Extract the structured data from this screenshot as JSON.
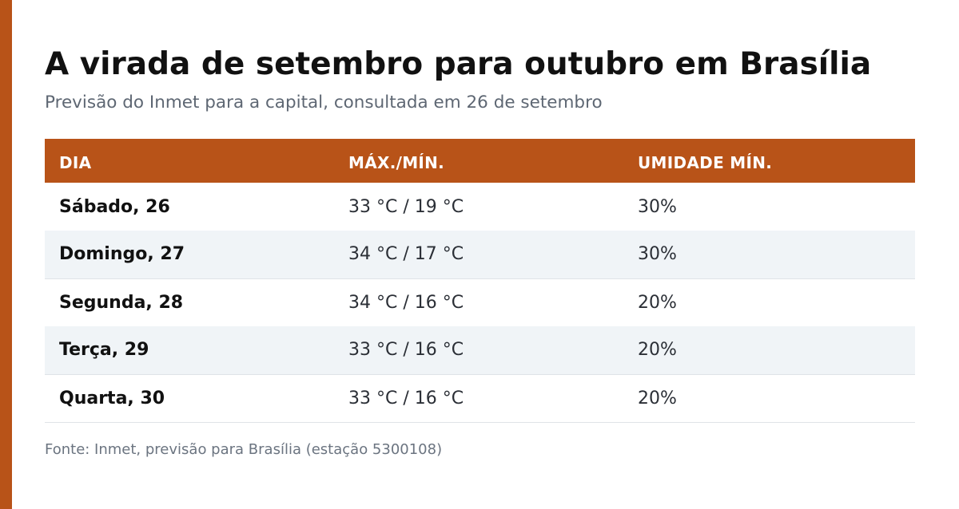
{
  "colors": {
    "accent": "#b85318",
    "row_alt": "#f0f4f7",
    "title": "#111111",
    "muted": "#5e6773"
  },
  "title": "A virada de setembro para outubro em Brasília",
  "subtitle": "Previsão do Inmet para a capital, consultada em 26 de setembro",
  "table": {
    "headers": [
      "DIA",
      "MÁX./MÍN.",
      "UMIDADE MÍN."
    ],
    "rows": [
      {
        "day": "Sábado, 26",
        "temp": "33 °C / 19 °C",
        "humidity": "30%"
      },
      {
        "day": "Domingo, 27",
        "temp": "34 °C / 17 °C",
        "humidity": "30%"
      },
      {
        "day": "Segunda, 28",
        "temp": "34 °C / 16 °C",
        "humidity": "20%"
      },
      {
        "day": "Terça, 29",
        "temp": "33 °C / 16 °C",
        "humidity": "20%"
      },
      {
        "day": "Quarta, 30",
        "temp": "33 °C / 16 °C",
        "humidity": "20%"
      }
    ]
  },
  "source": "Fonte: Inmet, previsão para Brasília (estação 5300108)"
}
